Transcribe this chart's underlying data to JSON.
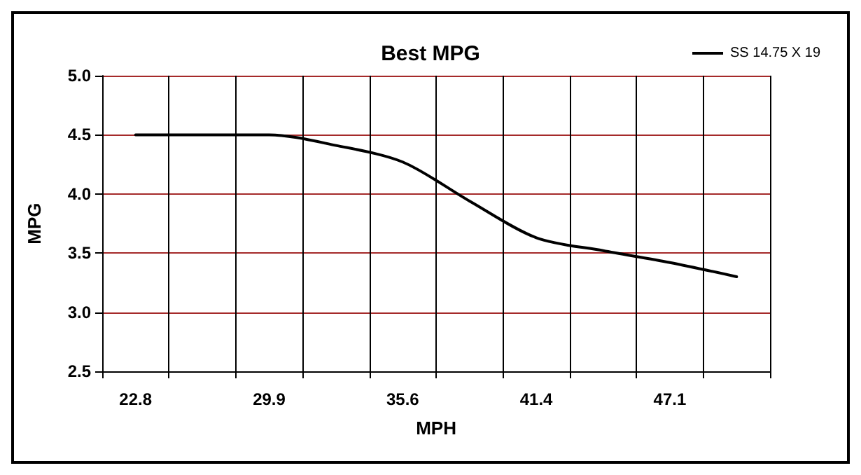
{
  "chart_data": {
    "type": "line",
    "title": "Best MPG",
    "xlabel": "MPH",
    "ylabel": "MPG",
    "categories": [
      "22.8",
      null,
      "29.9",
      null,
      "35.6",
      null,
      "41.4",
      null,
      "47.1",
      null
    ],
    "series": [
      {
        "name": "SS 14.75 X 19",
        "color": "#000000",
        "values": [
          4.5,
          4.5,
          4.5,
          4.41,
          4.27,
          3.94,
          3.63,
          3.52,
          3.42,
          3.3
        ]
      }
    ],
    "ylim": [
      2.5,
      5
    ],
    "yticks": [
      2.5,
      {
        "value": 3,
        "label": "3.0"
      },
      3.5,
      {
        "value": 4,
        "label": "4.0"
      },
      4.5,
      {
        "value": 5,
        "label": "5.0"
      }
    ],
    "grid": true,
    "legend": "top right",
    "marker": "none",
    "line_style": "solid"
  }
}
